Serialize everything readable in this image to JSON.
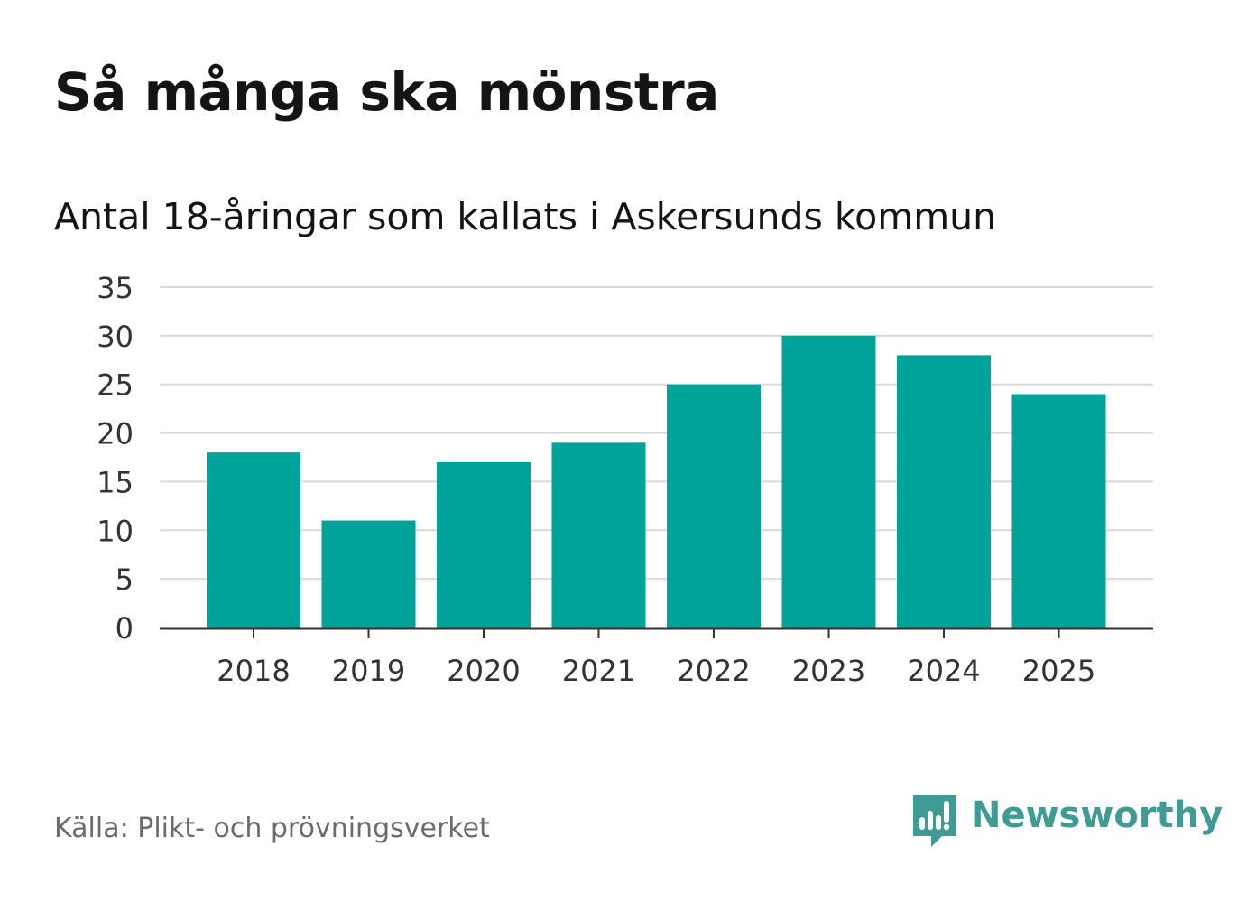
{
  "header": {
    "title": "Så många ska mönstra",
    "subtitle": "Antal 18-åringar som kallats i Askersunds kommun"
  },
  "footer": {
    "source": "Källa: Plikt- och prövningsverket",
    "brand_name": "Newsworthy",
    "brand_icon": "newsworthy-logo-icon"
  },
  "colors": {
    "bar": "#00a39a",
    "grid": "#d9d9d9",
    "axis": "#333333",
    "tick_text": "#333333",
    "brand": "#3f9b93"
  },
  "chart_data": {
    "type": "bar",
    "title": "Så många ska mönstra",
    "subtitle": "Antal 18-åringar som kallats i Askersunds kommun",
    "xlabel": "",
    "ylabel": "",
    "categories": [
      "2018",
      "2019",
      "2020",
      "2021",
      "2022",
      "2023",
      "2024",
      "2025"
    ],
    "values": [
      18,
      11,
      17,
      19,
      25,
      30,
      28,
      24
    ],
    "ylim": [
      0,
      35
    ],
    "yticks": [
      0,
      5,
      10,
      15,
      20,
      25,
      30,
      35
    ],
    "grid": true,
    "legend": "none"
  }
}
